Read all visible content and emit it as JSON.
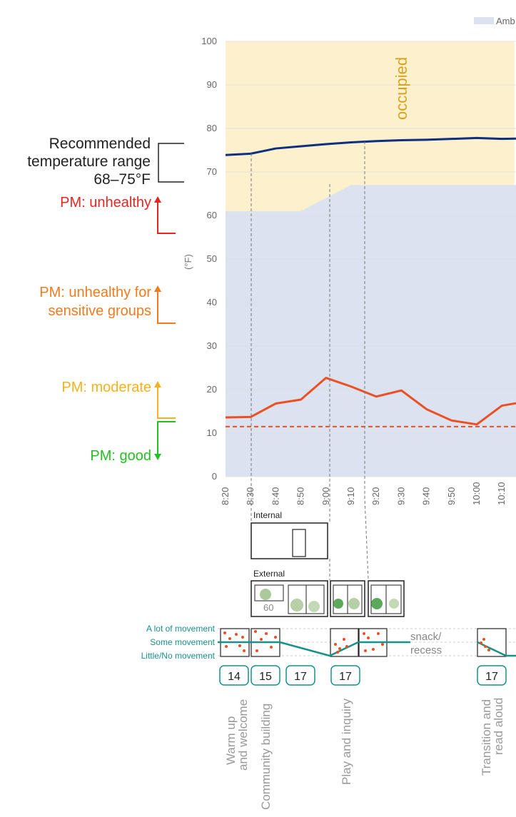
{
  "chart_data": {
    "type": "line",
    "legend": {
      "partial_label": "Amb",
      "placement": "top-right"
    },
    "ylabel": "(°F)",
    "ylim": [
      0,
      100
    ],
    "yticks": [
      0,
      10,
      20,
      30,
      40,
      50,
      60,
      70,
      80,
      90,
      100
    ],
    "xticks": [
      "8:20",
      "8:30",
      "8:40",
      "8:50",
      "9:00",
      "9:10",
      "9:20",
      "9:30",
      "9:40",
      "9:50",
      "10:00",
      "10:10"
    ],
    "grid": true,
    "colors": {
      "band": "#dbe3f1",
      "occupied": "#fcf0cd",
      "temperature": "#0f2f7f",
      "pm": "#ee4f22",
      "pm_ref": "#ee4f22",
      "grid": "#dddddd"
    },
    "occupied_label": "occupied",
    "occupied_periods": [
      [
        8.2,
        9.35
      ],
      [
        10.0,
        10.6
      ]
    ],
    "band_upper": [
      [
        8.2,
        61
      ],
      [
        8.5,
        61
      ],
      [
        8.7,
        67
      ],
      [
        9.3,
        67
      ],
      [
        9.4,
        67
      ],
      [
        9.6,
        67
      ],
      [
        10,
        70
      ],
      [
        10.6,
        70
      ]
    ],
    "series": [
      {
        "name": "temperature",
        "x": [
          8.2,
          8.3,
          8.4,
          8.5,
          8.6,
          8.7,
          8.8,
          8.9,
          9.0,
          9.1,
          9.2,
          9.3,
          9.4,
          9.5,
          9.6
        ],
        "values": [
          73.9,
          74.2,
          75.4,
          75.9,
          76.4,
          76.8,
          77.1,
          77.3,
          77.4,
          77.6,
          77.8,
          77.6,
          77.7,
          77.8,
          78.0
        ]
      },
      {
        "name": "pm",
        "x": [
          8.2,
          8.3,
          8.4,
          8.5,
          8.6,
          8.7,
          8.8,
          8.9,
          9.0,
          9.1,
          9.2,
          9.3,
          9.4,
          9.5,
          9.6
        ],
        "values": [
          13.6,
          13.7,
          16.8,
          17.7,
          22.7,
          20.7,
          18.4,
          19.8,
          15.5,
          12.9,
          12.0,
          16.3,
          17.3,
          17.3,
          17.3
        ]
      }
    ],
    "pm_reference_value": 11.5,
    "guide_lines": [
      8.3,
      8.6,
      8.75
    ]
  },
  "left_annotations": {
    "recommended_line1": "Recommended",
    "recommended_line2": "temperature range",
    "recommended_line3": "68–75°F",
    "pm_unhealthy": "PM: unhealthy",
    "pm_sensitive_line1": "PM: unhealthy for",
    "pm_sensitive_line2": "sensitive groups",
    "pm_moderate": "PM: moderate",
    "pm_good": "PM: good",
    "colors": {
      "unhealthy": "#e8261f",
      "sensitive": "#f47a1f",
      "moderate": "#f5b21c",
      "good": "#22c222"
    }
  },
  "environment": {
    "internal_label": "Internal",
    "external_label": "External",
    "external_count": "60"
  },
  "movement": {
    "levels": [
      "A lot of movement",
      "Some movement",
      "Little/No movement"
    ],
    "snack_line1": "snack/",
    "snack_line2": "recess",
    "color": "#17918a"
  },
  "counts": [
    "14",
    "15",
    "17",
    "17",
    "17"
  ],
  "activities": [
    {
      "line1": "Warm up",
      "line2": "and welcome"
    },
    {
      "line1": "Community building",
      "line2": ""
    },
    {
      "line1": "Play and inquiry",
      "line2": ""
    },
    {
      "line1": "Transition and",
      "line2": "read aloud"
    }
  ]
}
